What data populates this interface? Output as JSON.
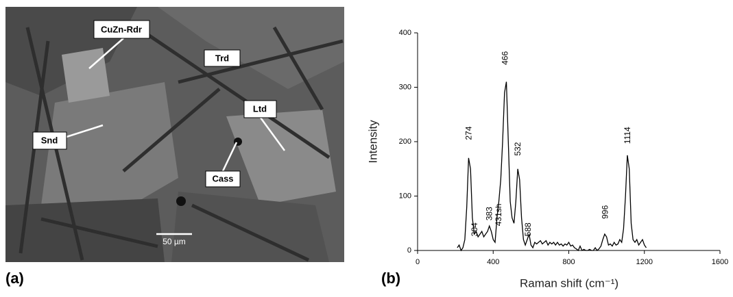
{
  "image_panel": {
    "panel_label": "(a)",
    "labels": [
      "CuZn-Rdr",
      "Trd",
      "Snd",
      "Ltd",
      "Cass"
    ],
    "scale_bar": "50 µm"
  },
  "chart_data": {
    "type": "line",
    "panel_label": "(b)",
    "x_label": "Raman shift (cm⁻¹)",
    "y_label": "Intensity",
    "color": "#000000",
    "x": [
      210,
      220,
      230,
      240,
      250,
      260,
      270,
      280,
      290,
      300,
      310,
      320,
      330,
      340,
      350,
      360,
      370,
      380,
      390,
      400,
      410,
      420,
      430,
      440,
      450,
      460,
      470,
      480,
      490,
      500,
      510,
      520,
      530,
      540,
      550,
      560,
      570,
      580,
      590,
      600,
      610,
      620,
      630,
      640,
      650,
      660,
      670,
      680,
      690,
      700,
      710,
      720,
      730,
      740,
      750,
      760,
      770,
      780,
      790,
      800,
      810,
      820,
      830,
      840,
      850,
      860,
      870,
      880,
      890,
      900,
      910,
      920,
      930,
      940,
      950,
      960,
      970,
      980,
      990,
      1000,
      1010,
      1020,
      1030,
      1040,
      1050,
      1060,
      1070,
      1080,
      1090,
      1100,
      1110,
      1120,
      1130,
      1140,
      1150,
      1160,
      1170,
      1180,
      1190,
      1200,
      1210
    ],
    "values": [
      5,
      10,
      0,
      5,
      20,
      80,
      170,
      150,
      60,
      30,
      35,
      25,
      30,
      35,
      25,
      30,
      35,
      45,
      35,
      20,
      15,
      60,
      90,
      130,
      200,
      290,
      310,
      200,
      90,
      60,
      50,
      90,
      150,
      130,
      60,
      20,
      10,
      20,
      30,
      10,
      5,
      15,
      12,
      15,
      18,
      12,
      15,
      18,
      10,
      15,
      12,
      15,
      10,
      15,
      10,
      12,
      8,
      12,
      10,
      15,
      8,
      10,
      5,
      3,
      0,
      8,
      0,
      2,
      0,
      0,
      2,
      0,
      0,
      5,
      0,
      3,
      8,
      20,
      30,
      25,
      10,
      12,
      8,
      15,
      10,
      12,
      20,
      15,
      40,
      100,
      175,
      150,
      50,
      20,
      15,
      20,
      10,
      15,
      20,
      10,
      5
    ],
    "xlim": [
      0,
      1600
    ],
    "xticks": [
      0,
      400,
      800,
      1200,
      1600
    ],
    "ylim": [
      0,
      400
    ],
    "yticks": [
      0,
      100,
      200,
      300,
      400
    ],
    "annotations": [
      {
        "label": "274",
        "x": 274,
        "y": 203
      },
      {
        "label": "304",
        "x": 304,
        "y": 26
      },
      {
        "label": "383",
        "x": 383,
        "y": 55
      },
      {
        "label": "431sh",
        "x": 431,
        "y": 45
      },
      {
        "label": "466",
        "x": 466,
        "y": 341
      },
      {
        "label": "532",
        "x": 532,
        "y": 174
      },
      {
        "label": "588",
        "x": 588,
        "y": 26
      },
      {
        "label": "996",
        "x": 996,
        "y": 58
      },
      {
        "label": "1114",
        "x": 1114,
        "y": 196
      }
    ]
  }
}
